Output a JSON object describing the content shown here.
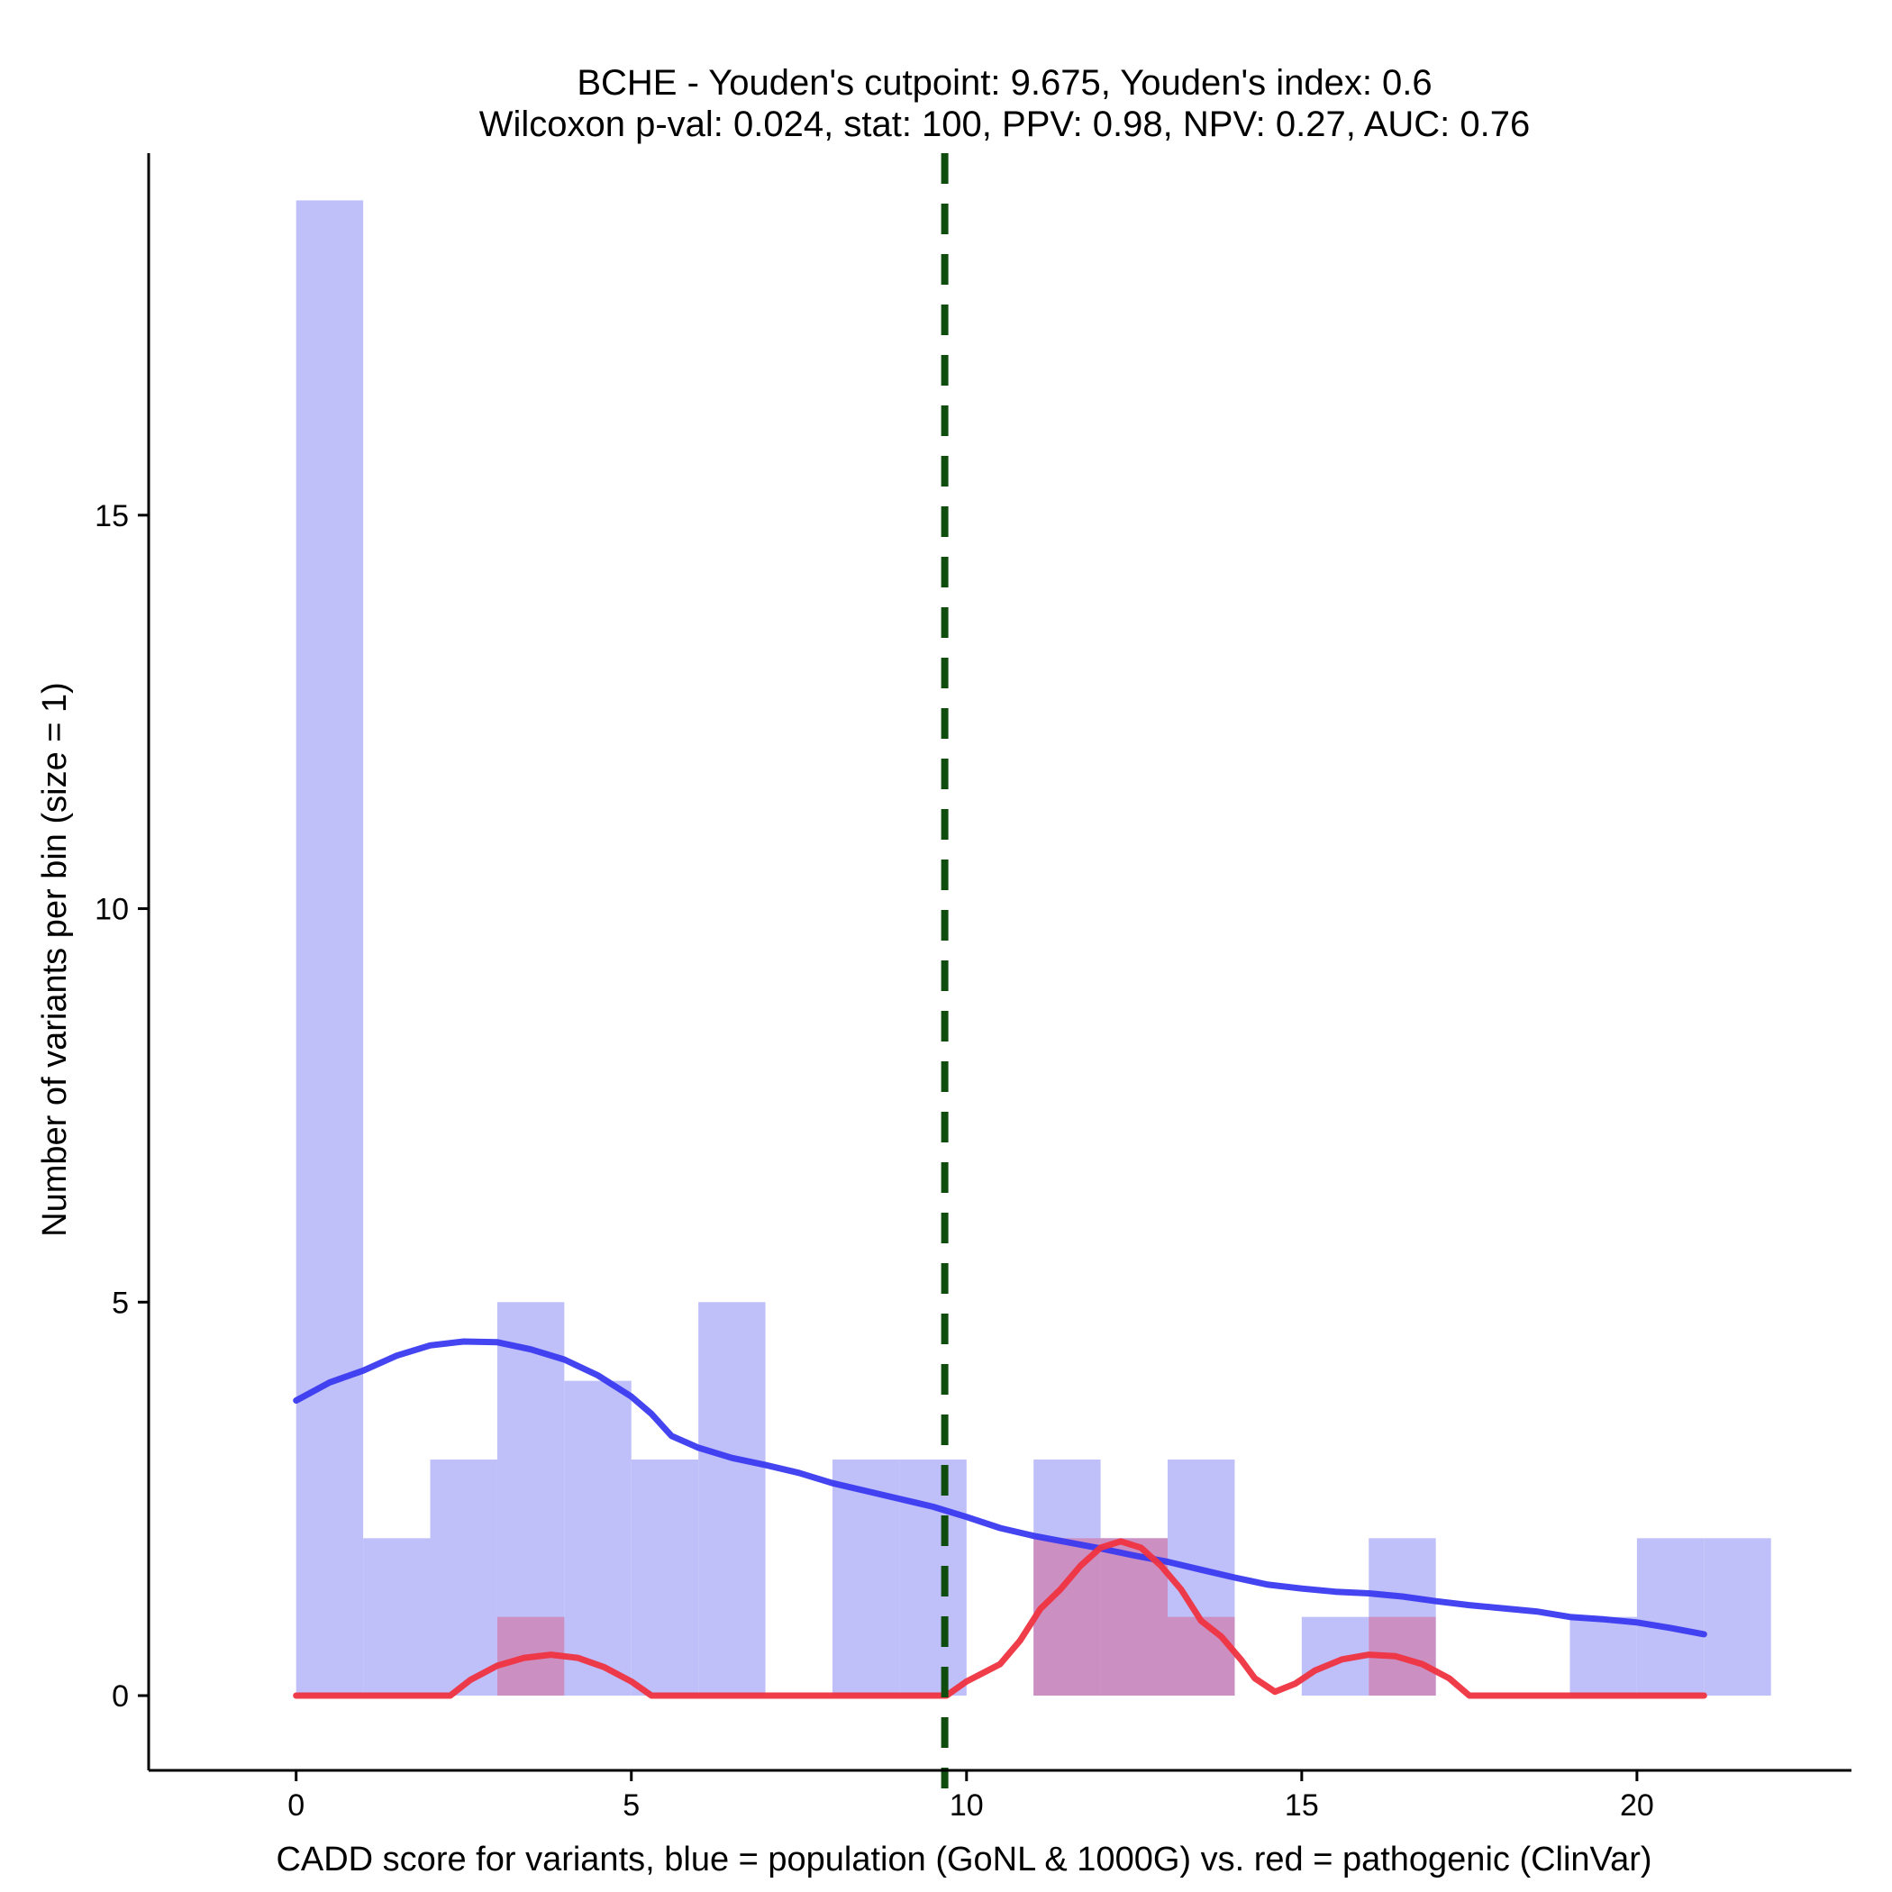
{
  "chart_data": {
    "type": "histogram",
    "title_lines": [
      "BCHE - Youden's cutpoint: 9.675, Youden's index: 0.6",
      "Wilcoxon p-val: 0.024, stat: 100, PPV: 0.98, NPV: 0.27, AUC: 0.76"
    ],
    "xlabel": "CADD score for variants, blue = population (GoNL & 1000G) vs. red = pathogenic (ClinVar)",
    "ylabel": "Number of variants per bin (size = 1)",
    "xlim": [
      -2.2,
      23.2
    ],
    "ylim": [
      -0.95,
      19.6
    ],
    "xticks": [
      0,
      5,
      10,
      15,
      20
    ],
    "yticks": [
      0,
      5,
      10,
      15
    ],
    "bin_width": 1,
    "cutpoint": 9.675,
    "colors": {
      "population_bar": "#bfbff9",
      "pathogenic_bar": "#cc8fc2",
      "population_line": "#3a3af0",
      "pathogenic_line": "#ef3340",
      "cutpoint_line": "#0f4d0f",
      "axis": "#000000"
    },
    "series": [
      {
        "name": "population (GoNL & 1000G)",
        "bins": [
          {
            "x0": 0,
            "x1": 1,
            "count": 19
          },
          {
            "x0": 1,
            "x1": 2,
            "count": 2
          },
          {
            "x0": 2,
            "x1": 3,
            "count": 3
          },
          {
            "x0": 3,
            "x1": 4,
            "count": 5
          },
          {
            "x0": 4,
            "x1": 5,
            "count": 4
          },
          {
            "x0": 5,
            "x1": 6,
            "count": 3
          },
          {
            "x0": 6,
            "x1": 7,
            "count": 5
          },
          {
            "x0": 8,
            "x1": 9,
            "count": 3
          },
          {
            "x0": 9,
            "x1": 10,
            "count": 3
          },
          {
            "x0": 11,
            "x1": 12,
            "count": 3
          },
          {
            "x0": 12,
            "x1": 13,
            "count": 2
          },
          {
            "x0": 13,
            "x1": 14,
            "count": 3
          },
          {
            "x0": 15,
            "x1": 16,
            "count": 1
          },
          {
            "x0": 16,
            "x1": 17,
            "count": 2
          },
          {
            "x0": 19,
            "x1": 20,
            "count": 1
          },
          {
            "x0": 20,
            "x1": 21,
            "count": 2
          },
          {
            "x0": 21,
            "x1": 22,
            "count": 2
          }
        ],
        "density_curve": [
          [
            0,
            3.75
          ],
          [
            0.5,
            3.98
          ],
          [
            1,
            4.13
          ],
          [
            1.5,
            4.32
          ],
          [
            2,
            4.45
          ],
          [
            2.5,
            4.5
          ],
          [
            3,
            4.49
          ],
          [
            3.5,
            4.4
          ],
          [
            4,
            4.27
          ],
          [
            4.5,
            4.07
          ],
          [
            5,
            3.8
          ],
          [
            5.3,
            3.58
          ],
          [
            5.6,
            3.3
          ],
          [
            6,
            3.15
          ],
          [
            6.5,
            3.02
          ],
          [
            7,
            2.93
          ],
          [
            7.5,
            2.83
          ],
          [
            8,
            2.7
          ],
          [
            8.5,
            2.6
          ],
          [
            9,
            2.5
          ],
          [
            9.5,
            2.4
          ],
          [
            10,
            2.27
          ],
          [
            10.5,
            2.13
          ],
          [
            11,
            2.03
          ],
          [
            11.5,
            1.95
          ],
          [
            12,
            1.87
          ],
          [
            12.5,
            1.78
          ],
          [
            13,
            1.7
          ],
          [
            13.5,
            1.6
          ],
          [
            14,
            1.5
          ],
          [
            14.5,
            1.41
          ],
          [
            15,
            1.36
          ],
          [
            15.5,
            1.32
          ],
          [
            16,
            1.3
          ],
          [
            16.5,
            1.26
          ],
          [
            17,
            1.2
          ],
          [
            17.5,
            1.15
          ],
          [
            18,
            1.11
          ],
          [
            18.5,
            1.07
          ],
          [
            19,
            1.0
          ],
          [
            19.5,
            0.97
          ],
          [
            20,
            0.93
          ],
          [
            20.5,
            0.86
          ],
          [
            21,
            0.78
          ]
        ]
      },
      {
        "name": "pathogenic (ClinVar)",
        "bins": [
          {
            "x0": 3,
            "x1": 4,
            "count": 1
          },
          {
            "x0": 11,
            "x1": 12,
            "count": 2
          },
          {
            "x0": 12,
            "x1": 13,
            "count": 2
          },
          {
            "x0": 13,
            "x1": 14,
            "count": 1
          },
          {
            "x0": 16,
            "x1": 17,
            "count": 1
          }
        ],
        "density_curve": [
          [
            0,
            0
          ],
          [
            2.3,
            0
          ],
          [
            2.6,
            0.2
          ],
          [
            3,
            0.38
          ],
          [
            3.4,
            0.48
          ],
          [
            3.8,
            0.52
          ],
          [
            4.2,
            0.48
          ],
          [
            4.6,
            0.36
          ],
          [
            5,
            0.18
          ],
          [
            5.3,
            0
          ],
          [
            9.7,
            0
          ],
          [
            10,
            0.18
          ],
          [
            10.5,
            0.4
          ],
          [
            10.8,
            0.7
          ],
          [
            11.1,
            1.1
          ],
          [
            11.4,
            1.35
          ],
          [
            11.7,
            1.65
          ],
          [
            12,
            1.88
          ],
          [
            12.3,
            1.96
          ],
          [
            12.6,
            1.88
          ],
          [
            12.9,
            1.65
          ],
          [
            13.2,
            1.35
          ],
          [
            13.5,
            0.95
          ],
          [
            13.8,
            0.75
          ],
          [
            14.1,
            0.45
          ],
          [
            14.3,
            0.22
          ],
          [
            14.6,
            0.05
          ],
          [
            14.9,
            0.15
          ],
          [
            15.2,
            0.32
          ],
          [
            15.6,
            0.46
          ],
          [
            16,
            0.52
          ],
          [
            16.4,
            0.5
          ],
          [
            16.8,
            0.4
          ],
          [
            17.2,
            0.22
          ],
          [
            17.5,
            0
          ],
          [
            21,
            0
          ]
        ]
      }
    ]
  }
}
